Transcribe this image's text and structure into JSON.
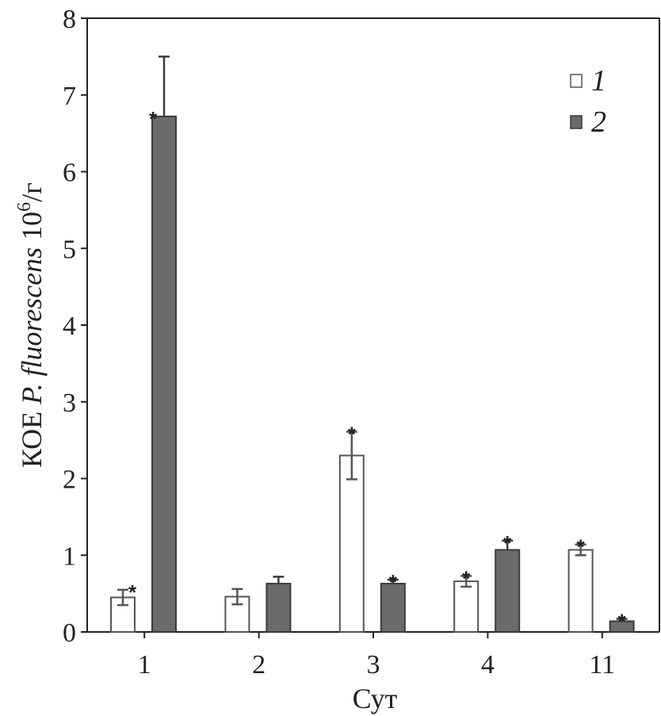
{
  "chart_data": {
    "type": "bar",
    "categories": [
      "1",
      "2",
      "3",
      "4",
      "11"
    ],
    "series": [
      {
        "name": "1",
        "color": "#ffffff",
        "values": [
          0.45,
          0.46,
          2.3,
          0.66,
          1.07
        ],
        "errors": [
          0.1,
          0.1,
          0.31,
          0.07,
          0.07
        ],
        "significant": [
          true,
          false,
          true,
          true,
          true
        ]
      },
      {
        "name": "2",
        "color": "#6b6b6e",
        "values": [
          6.72,
          0.63,
          0.63,
          1.07,
          0.14
        ],
        "errors": [
          0.78,
          0.09,
          0.05,
          0.12,
          0.03
        ],
        "significant": [
          true,
          false,
          true,
          true,
          true
        ]
      }
    ],
    "xlabel": "Сут",
    "ylabel": {
      "prefix": "КОЕ ",
      "italic": "P. fluorescens",
      "mid": " 10",
      "sup": "6",
      "suffix": "/г"
    },
    "significance_marker": "*",
    "ylim": [
      0,
      8
    ],
    "yticks": [
      0,
      1,
      2,
      3,
      4,
      5,
      6,
      7,
      8
    ],
    "legend_position": "top-right",
    "grid": false
  }
}
